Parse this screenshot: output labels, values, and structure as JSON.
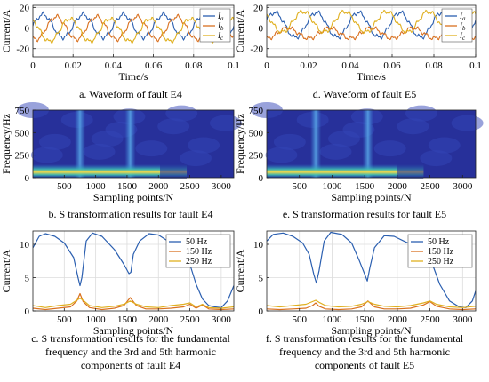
{
  "figure": {
    "caption_a": "a. Waveform of fault E4",
    "caption_d": "d. Waveform of fault E5",
    "caption_b": "b. S transformation results for fault E4",
    "caption_e": "e. S transformation results for fault E5",
    "caption_c": [
      "c. S transformation results for the fundamental",
      "frequency and the 3rd and 5th harmonic",
      "components of fault E4"
    ],
    "caption_f": [
      "f. S transformation results for the fundamental",
      "frequency and the 3rd and 5th harmonic",
      "components of fault E5"
    ]
  },
  "chart_data": [
    {
      "id": "a",
      "type": "line",
      "title": "",
      "xlabel": "Time/s",
      "ylabel": "Current/A",
      "xlim": [
        0,
        0.1
      ],
      "ylim": [
        -28,
        22
      ],
      "xticks": [
        "0",
        "0.02",
        "0.04",
        "0.06",
        "0.08",
        "0.1"
      ],
      "xtick_values": [
        0,
        0.02,
        0.04,
        0.06,
        0.08,
        0.1
      ],
      "yticks": [
        "20",
        "0",
        "-20"
      ],
      "ytick_values": [
        20,
        0,
        -20
      ],
      "legend": [
        "I_a",
        "I_b",
        "I_c"
      ],
      "legend_position": "top-right",
      "colors": [
        "#2b5fb0",
        "#d9701f",
        "#e0b020"
      ],
      "grid": true,
      "series": [
        {
          "amplitude": 11,
          "phase": 0,
          "offset": 2
        },
        {
          "amplitude": 11,
          "phase": -2.09,
          "offset": 0
        },
        {
          "amplitude": 11,
          "phase": 2.09,
          "offset": -2
        }
      ],
      "frequency_hz": 50
    },
    {
      "id": "d",
      "type": "line",
      "title": "",
      "xlabel": "Time/s",
      "ylabel": "Current/A",
      "xlim": [
        0,
        0.1
      ],
      "ylim": [
        -28,
        22
      ],
      "xticks": [
        "0",
        "0.02",
        "0.04",
        "0.06",
        "0.08",
        "0.1"
      ],
      "xtick_values": [
        0,
        0.02,
        0.04,
        0.06,
        0.08,
        0.1
      ],
      "yticks": [
        "20",
        "0",
        "-20"
      ],
      "ytick_values": [
        20,
        0,
        -20
      ],
      "legend": [
        "I_a",
        "I_b",
        "I_c"
      ],
      "legend_position": "top-right",
      "colors": [
        "#2b5fb0",
        "#d9701f",
        "#e0b020"
      ],
      "grid": true,
      "series": [
        {
          "amplitude": 12,
          "phase": 0.4,
          "offset": 3
        },
        {
          "amplitude": 5,
          "phase": -1.6,
          "offset": -5
        },
        {
          "amplitude": 10,
          "phase": 2.4,
          "offset": 6
        }
      ],
      "frequency_hz": 50
    },
    {
      "id": "b",
      "type": "heatmap",
      "title": "",
      "xlabel": "Sampling points/N",
      "ylabel": "Frequency/Hz",
      "xlim": [
        0,
        3200
      ],
      "ylim": [
        0,
        750
      ],
      "xticks": [
        "500",
        "1000",
        "1500",
        "2000",
        "2500",
        "3000"
      ],
      "xtick_values": [
        500,
        1000,
        1500,
        2000,
        2500,
        3000
      ],
      "yticks": [
        "750",
        "500",
        "250",
        "0"
      ],
      "ytick_values": [
        750,
        500,
        250,
        0
      ],
      "bright_band_hz": 50,
      "bright_band_end": 2450,
      "vertical_spikes_at": [
        750,
        1550
      ]
    },
    {
      "id": "e",
      "type": "heatmap",
      "title": "",
      "xlabel": "Sampling points/N",
      "ylabel": "Frequency/Hz",
      "xlim": [
        0,
        3200
      ],
      "ylim": [
        0,
        750
      ],
      "xticks": [
        "500",
        "1000",
        "1500",
        "2000",
        "2500",
        "3000"
      ],
      "xtick_values": [
        500,
        1000,
        1500,
        2000,
        2500,
        3000
      ],
      "yticks": [
        "750",
        "500",
        "250",
        "0"
      ],
      "ytick_values": [
        750,
        500,
        250,
        0
      ],
      "bright_band_hz": 50,
      "bright_band_end": 2400,
      "vertical_spikes_at": [
        750,
        1550
      ]
    },
    {
      "id": "c",
      "type": "line",
      "title": "",
      "xlabel": "Sampling points/N",
      "ylabel": "Current/A",
      "xlim": [
        0,
        3200
      ],
      "ylim": [
        0,
        12
      ],
      "xticks": [
        "500",
        "1000",
        "1500",
        "2000",
        "2500",
        "3000"
      ],
      "xtick_values": [
        500,
        1000,
        1500,
        2000,
        2500,
        3000
      ],
      "yticks": [
        "10",
        "5",
        "0"
      ],
      "ytick_values": [
        10,
        5,
        0
      ],
      "legend": [
        "50 Hz",
        "150 Hz",
        "250 Hz"
      ],
      "legend_position": "top-right",
      "colors": [
        "#2b5fb0",
        "#d9701f",
        "#e0b020"
      ],
      "grid": true,
      "series": [
        {
          "name": "50 Hz",
          "x": [
            0,
            100,
            200,
            350,
            500,
            650,
            720,
            750,
            780,
            850,
            950,
            1100,
            1300,
            1450,
            1530,
            1560,
            1600,
            1700,
            1850,
            2000,
            2150,
            2300,
            2400,
            2500,
            2600,
            2700,
            2800,
            2900,
            3000,
            3100,
            3200
          ],
          "y": [
            9.5,
            11.2,
            11.6,
            11.2,
            10.2,
            8,
            5,
            3.8,
            5,
            10.5,
            11.7,
            11.2,
            9.2,
            7,
            5.6,
            5.8,
            8.5,
            10.5,
            11.6,
            11.4,
            10.5,
            9.5,
            9.2,
            7,
            4,
            1.8,
            0.8,
            0.6,
            0.5,
            1.5,
            3.8
          ]
        },
        {
          "name": "150 Hz",
          "x": [
            0,
            200,
            400,
            600,
            700,
            750,
            800,
            900,
            1100,
            1300,
            1450,
            1550,
            1650,
            1800,
            2000,
            2200,
            2400,
            2500,
            2600,
            2700,
            2800,
            3000,
            3200
          ],
          "y": [
            0.4,
            0.2,
            0.4,
            0.6,
            1.5,
            2.6,
            1.4,
            0.5,
            0.2,
            0.4,
            0.8,
            2.0,
            0.8,
            0.3,
            0.3,
            0.4,
            0.6,
            1.0,
            0.4,
            0.9,
            0.3,
            0.2,
            0.3
          ]
        },
        {
          "name": "250 Hz",
          "x": [
            0,
            200,
            400,
            600,
            700,
            750,
            800,
            900,
            1100,
            1300,
            1450,
            1550,
            1650,
            1800,
            2000,
            2200,
            2400,
            2500,
            2600,
            2700,
            2800,
            3000,
            3200
          ],
          "y": [
            0.8,
            0.5,
            0.8,
            1.0,
            1.6,
            1.9,
            1.6,
            0.8,
            0.5,
            0.7,
            1.0,
            1.5,
            1.0,
            0.6,
            0.5,
            0.8,
            1.0,
            1.2,
            0.6,
            1.0,
            0.5,
            0.4,
            0.6
          ]
        }
      ]
    },
    {
      "id": "f",
      "type": "line",
      "title": "",
      "xlabel": "Sampling points/N",
      "ylabel": "Current/A",
      "xlim": [
        0,
        3200
      ],
      "ylim": [
        0,
        12
      ],
      "xticks": [
        "500",
        "1000",
        "1500",
        "2000",
        "2500",
        "3000"
      ],
      "xtick_values": [
        500,
        1000,
        1500,
        2000,
        2500,
        3000
      ],
      "yticks": [
        "10",
        "5",
        "0"
      ],
      "ytick_values": [
        10,
        5,
        0
      ],
      "legend": [
        "50 Hz",
        "150 Hz",
        "250 Hz"
      ],
      "legend_position": "top-right",
      "colors": [
        "#2b5fb0",
        "#d9701f",
        "#e0b020"
      ],
      "grid": true,
      "series": [
        {
          "name": "50 Hz",
          "x": [
            0,
            100,
            250,
            400,
            550,
            650,
            720,
            760,
            800,
            880,
            980,
            1150,
            1300,
            1420,
            1500,
            1540,
            1580,
            1650,
            1800,
            1950,
            2100,
            2250,
            2400,
            2500,
            2650,
            2800,
            2950,
            3050,
            3150,
            3200
          ],
          "y": [
            10.5,
            11.5,
            11.7,
            11.2,
            10.2,
            8.5,
            5.5,
            4.2,
            6,
            10.5,
            11.8,
            11.5,
            10.2,
            7.5,
            5.5,
            4.5,
            6.5,
            9.5,
            11.3,
            11.2,
            10.5,
            9.8,
            9.5,
            8,
            4,
            1.5,
            0.6,
            0.5,
            1.5,
            3
          ]
        },
        {
          "name": "150 Hz",
          "x": [
            0,
            200,
            400,
            600,
            700,
            750,
            800,
            900,
            1100,
            1300,
            1450,
            1550,
            1650,
            1800,
            2000,
            2200,
            2400,
            2500,
            2600,
            2800,
            3000,
            3200
          ],
          "y": [
            0.3,
            0.2,
            0.3,
            0.4,
            0.8,
            1.2,
            0.7,
            0.3,
            0.2,
            0.3,
            0.6,
            1.5,
            0.6,
            0.3,
            0.3,
            0.4,
            0.9,
            1.4,
            0.7,
            0.3,
            0.2,
            0.3
          ]
        },
        {
          "name": "250 Hz",
          "x": [
            0,
            200,
            400,
            600,
            700,
            750,
            800,
            900,
            1100,
            1300,
            1450,
            1550,
            1650,
            1800,
            2000,
            2200,
            2400,
            2500,
            2600,
            2800,
            3000,
            3200
          ],
          "y": [
            0.8,
            0.6,
            0.8,
            1.0,
            1.4,
            1.6,
            1.3,
            0.8,
            0.6,
            0.7,
            1.0,
            1.4,
            1.0,
            0.7,
            0.6,
            0.8,
            1.2,
            1.5,
            1.0,
            0.6,
            0.5,
            0.7
          ]
        }
      ]
    }
  ]
}
